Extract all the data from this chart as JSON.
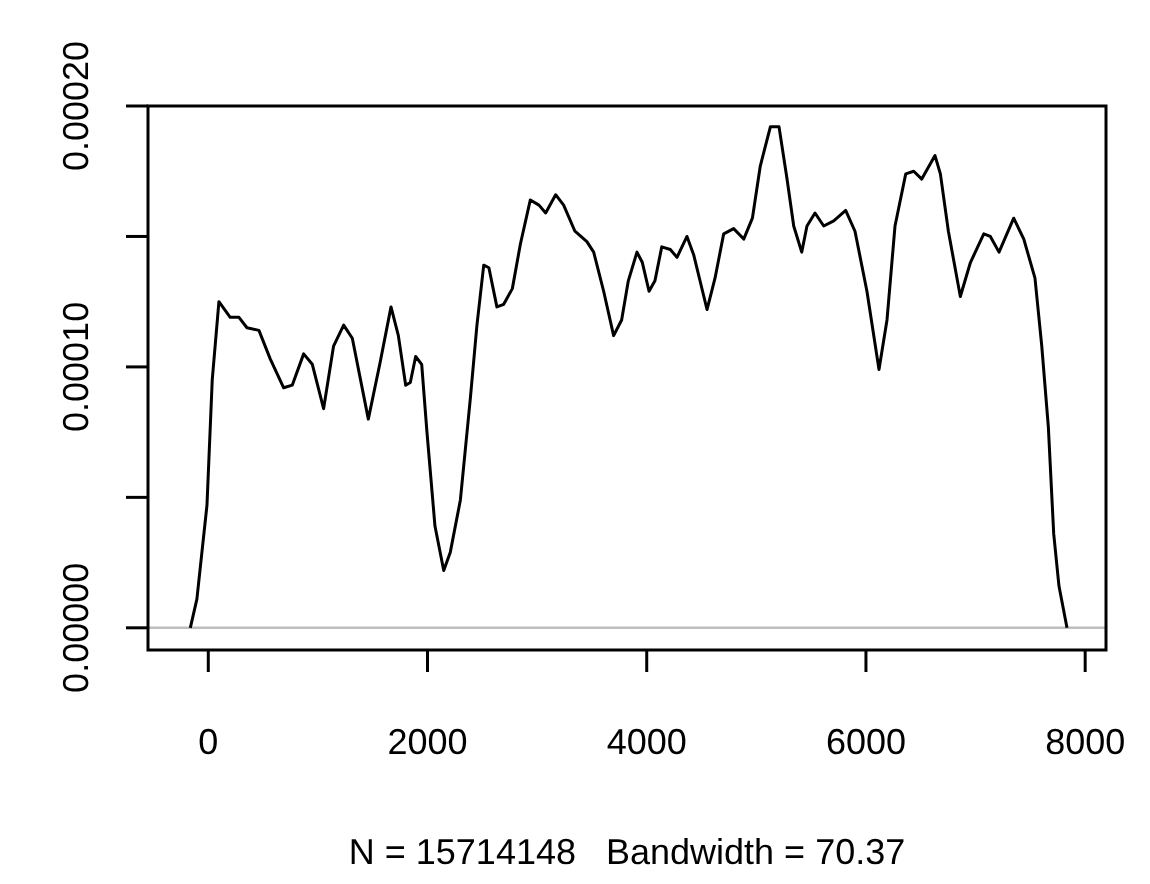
{
  "chart_data": {
    "type": "line",
    "xlabel": "N = 15714148   Bandwidth = 70.37",
    "xlim": [
      -550,
      8190
    ],
    "ylim": [
      -8.5e-06,
      0.0002
    ],
    "xticks": [
      0,
      2000,
      4000,
      6000,
      8000
    ],
    "yticks": [
      {
        "value": 0,
        "label": "0.00000"
      },
      {
        "value": 5e-05,
        "label": null
      },
      {
        "value": 0.0001,
        "label": "0.00010"
      },
      {
        "value": 0.00015,
        "label": null
      },
      {
        "value": 0.0002,
        "label": "0.00020"
      }
    ],
    "grid": false,
    "marker": "none",
    "line_style": "solid",
    "ref_lines": [
      {
        "axis": "y",
        "value": 0,
        "label": null,
        "color": "#bebebe"
      }
    ],
    "series": [
      {
        "color": "#000000",
        "x": [
          -164,
          -104,
          -12,
          36,
          97,
          200,
          280,
          353,
          462,
          566,
          688,
          766,
          870,
          949,
          1052,
          1143,
          1235,
          1314,
          1460,
          1569,
          1667,
          1734,
          1801,
          1843,
          1892,
          1947,
          1995,
          2068,
          2148,
          2208,
          2300,
          2391,
          2451,
          2513,
          2560,
          2633,
          2695,
          2774,
          2847,
          2938,
          3017,
          3078,
          3169,
          3242,
          3345,
          3454,
          3516,
          3607,
          3698,
          3771,
          3832,
          3911,
          3960,
          4021,
          4075,
          4137,
          4215,
          4276,
          4367,
          4428,
          4550,
          4623,
          4702,
          4793,
          4885,
          4964,
          5036,
          5128,
          5207,
          5280,
          5341,
          5414,
          5462,
          5535,
          5615,
          5706,
          5815,
          5900,
          6009,
          6119,
          6192,
          6265,
          6363,
          6436,
          6509,
          6630,
          6679,
          6752,
          6861,
          6953,
          7075,
          7135,
          7214,
          7348,
          7440,
          7542,
          7604,
          7664,
          7713,
          7761,
          7834
        ],
        "values": [
          0,
          1.1e-05,
          4.7e-05,
          9.5e-05,
          0.000125,
          0.000119,
          0.000119,
          0.000115,
          0.000114,
          0.000103,
          9.2e-05,
          9.3e-05,
          0.000105,
          0.000101,
          8.4e-05,
          0.000108,
          0.000116,
          0.000111,
          8e-05,
          0.000102,
          0.000123,
          0.000112,
          9.3e-05,
          9.4e-05,
          0.000104,
          0.000101,
          7.5e-05,
          3.9e-05,
          2.2e-05,
          2.9e-05,
          4.9e-05,
          8.8e-05,
          0.000116,
          0.000139,
          0.000138,
          0.000123,
          0.000124,
          0.00013,
          0.000147,
          0.000164,
          0.000162,
          0.000159,
          0.000166,
          0.000162,
          0.000152,
          0.000148,
          0.000144,
          0.000129,
          0.000112,
          0.000118,
          0.000133,
          0.000144,
          0.00014,
          0.000129,
          0.000133,
          0.000146,
          0.000145,
          0.000142,
          0.00015,
          0.000143,
          0.000122,
          0.000134,
          0.000151,
          0.000153,
          0.000149,
          0.000157,
          0.000177,
          0.000192,
          0.000192,
          0.000172,
          0.000154,
          0.000144,
          0.000154,
          0.000159,
          0.000154,
          0.000156,
          0.00016,
          0.000152,
          0.000129,
          9.9e-05,
          0.000118,
          0.000154,
          0.000174,
          0.000175,
          0.000172,
          0.000181,
          0.000174,
          0.000152,
          0.000127,
          0.00014,
          0.000151,
          0.00015,
          0.000144,
          0.000157,
          0.000149,
          0.000134,
          0.000108,
          7.7e-05,
          3.6e-05,
          1.6e-05,
          0
        ]
      }
    ]
  }
}
